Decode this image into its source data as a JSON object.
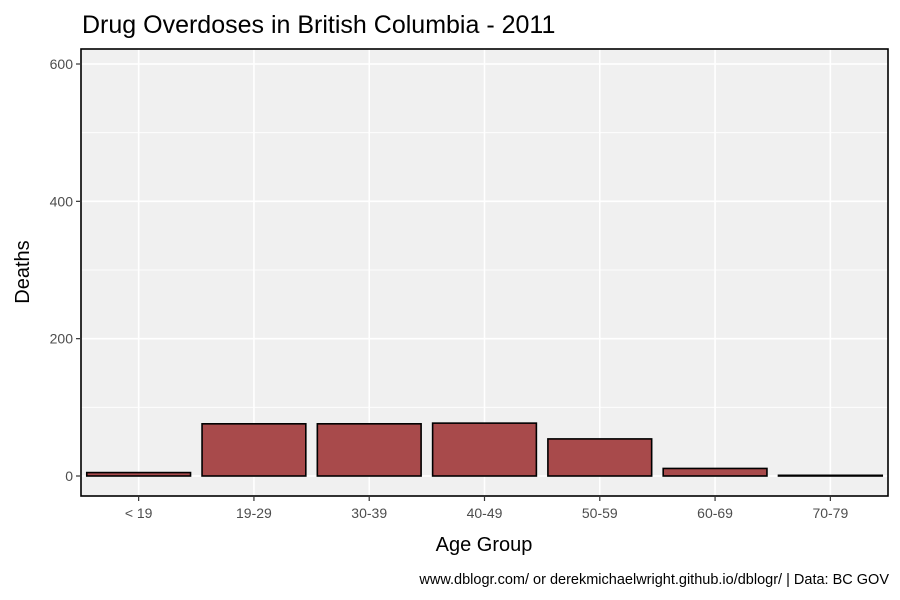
{
  "chart_data": {
    "type": "bar",
    "title": "Drug Overdoses in British Columbia - 2011",
    "xlabel": "Age Group",
    "ylabel": "Deaths",
    "caption": "www.dblogr.com/ or derekmichaelwright.github.io/dblogr/ | Data: BC GOV",
    "categories": [
      "< 19",
      "19-29",
      "30-39",
      "40-49",
      "50-59",
      "60-69",
      "70-79"
    ],
    "values": [
      5,
      76,
      76,
      77,
      54,
      11,
      1
    ],
    "ylim": [
      0,
      600
    ],
    "yticks": [
      0,
      200,
      400,
      600
    ],
    "grid": true,
    "colors": {
      "bar_fill": "#a84a4b",
      "bar_stroke": "#000000",
      "panel_background": "#f0f0f0",
      "panel_border": "#000000",
      "gridline": "#ffffff"
    }
  }
}
